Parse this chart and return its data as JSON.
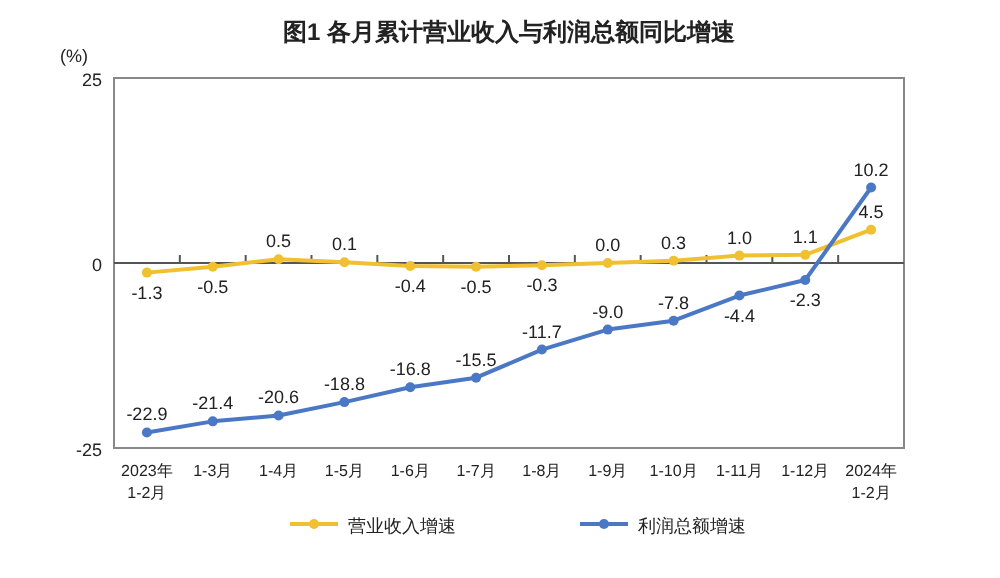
{
  "chart_data": {
    "type": "line",
    "title": "图1  各月累计营业收入与利润总额同比增速",
    "ylabel": "(%)",
    "categories": [
      "2023年\n1-2月",
      "1-3月",
      "1-4月",
      "1-5月",
      "1-6月",
      "1-7月",
      "1-8月",
      "1-9月",
      "1-10月",
      "1-11月",
      "1-12月",
      "2024年\n1-2月"
    ],
    "series": [
      {
        "name": "营业收入增速",
        "color": "#f0c030",
        "values": [
          -1.3,
          -0.5,
          0.5,
          0.1,
          -0.4,
          -0.5,
          -0.3,
          0.0,
          0.3,
          1.0,
          1.1,
          4.5
        ],
        "value_labels": [
          "-1.3",
          "-0.5",
          "0.5",
          "0.1",
          "-0.4",
          "-0.5",
          "-0.3",
          "0.0",
          "0.3",
          "1.0",
          "1.1",
          "4.5"
        ]
      },
      {
        "name": "利润总额增速",
        "color": "#4a78c4",
        "values": [
          -22.9,
          -21.4,
          -20.6,
          -18.8,
          -16.8,
          -15.5,
          -11.7,
          -9.0,
          -7.8,
          -4.4,
          -2.3,
          10.2
        ],
        "value_labels": [
          "-22.9",
          "-21.4",
          "-20.6",
          "-18.8",
          "-16.8",
          "-15.5",
          "-11.7",
          "-9.0",
          "-7.8",
          "-4.4",
          "-2.3",
          "10.2"
        ]
      }
    ],
    "ylim": [
      -25,
      25
    ],
    "yticks": [
      -25,
      0,
      25
    ],
    "legend": "bottom",
    "marker": "circle",
    "line_style": "solid"
  }
}
